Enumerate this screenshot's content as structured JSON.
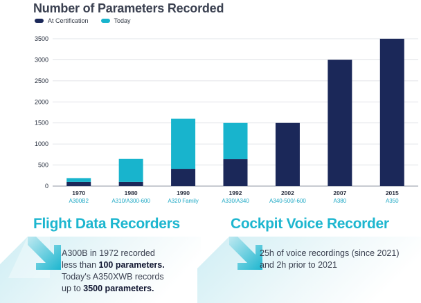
{
  "colors": {
    "certification": "#1b2859",
    "today": "#18b4cd",
    "accent": "#1db6cf",
    "grid": "#d8dbe0"
  },
  "chart_data": {
    "type": "bar",
    "stacked": true,
    "title": "Number of Parameters Recorded",
    "categories": [
      "1970",
      "1980",
      "1990",
      "1992",
      "2002",
      "2007",
      "2015"
    ],
    "subcategories": [
      "A300B2",
      "A310/A300-600",
      "A320 Family",
      "A330/A340",
      "A340-500/-600",
      "A380",
      "A350"
    ],
    "series": [
      {
        "name": "At Certification",
        "values": [
          100,
          100,
          410,
          640,
          1500,
          3000,
          3500
        ]
      },
      {
        "name": "Today",
        "values": [
          90,
          545,
          1190,
          860,
          0,
          0,
          0
        ]
      }
    ],
    "ylim": [
      0,
      3500
    ],
    "yticks": [
      "0",
      "500",
      "1000",
      "1500",
      "2000",
      "2500",
      "3000",
      "3500"
    ],
    "grid": true,
    "legend": "top-left"
  },
  "sections": {
    "fdr": {
      "heading": "Flight Data Recorders",
      "line1": "A300B in 1972 recorded",
      "line2_pre": "less than ",
      "line2_bold": "100 parameters.",
      "line3": "Today's A350XWB records",
      "line4_pre": "up to ",
      "line4_bold": "3500 parameters."
    },
    "cvr": {
      "heading": "Cockpit Voice Recorder",
      "line1": "25h of voice recordings (since 2021)",
      "line2": "and 2h prior to 2021"
    }
  }
}
